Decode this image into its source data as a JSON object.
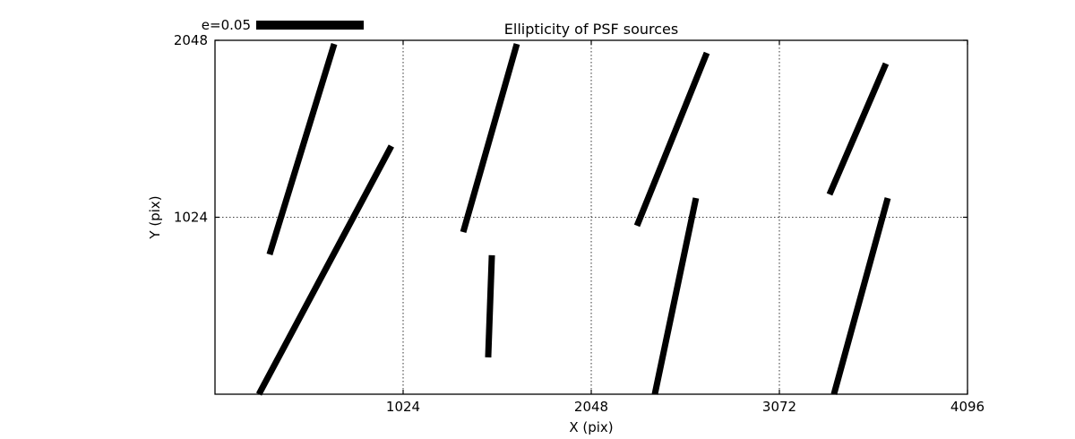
{
  "title": "Ellipticity of PSF sources",
  "chart_data": {
    "type": "line",
    "title": "Ellipticity of PSF sources",
    "xlabel": "X (pix)",
    "ylabel": "Y (pix)",
    "xlim": [
      0,
      4096
    ],
    "ylim": [
      0,
      2048
    ],
    "xticks": [
      1024,
      2048,
      3072,
      4096
    ],
    "yticks": [
      1024,
      2048
    ],
    "grid": "dotted",
    "legend": {
      "label": "e=0.05",
      "position": "top-left-above-axes"
    },
    "series_note": "headless whisker segments showing PSF ellipticity, data coords in pixels of detector",
    "segments": [
      {
        "x1": 297,
        "y1": 809,
        "x2": 649,
        "y2": 2027
      },
      {
        "x1": 239,
        "y1": 0,
        "x2": 960,
        "y2": 1436
      },
      {
        "x1": 1351,
        "y1": 938,
        "x2": 1643,
        "y2": 2027
      },
      {
        "x1": 1507,
        "y1": 804,
        "x2": 1487,
        "y2": 213
      },
      {
        "x1": 2297,
        "y1": 975,
        "x2": 2677,
        "y2": 1975
      },
      {
        "x1": 2394,
        "y1": 0,
        "x2": 2618,
        "y2": 1135
      },
      {
        "x1": 3345,
        "y1": 1156,
        "x2": 3652,
        "y2": 1913
      },
      {
        "x1": 3369,
        "y1": 0,
        "x2": 3662,
        "y2": 1135
      }
    ],
    "segment_stroke": "#000000",
    "segment_width": 7
  }
}
